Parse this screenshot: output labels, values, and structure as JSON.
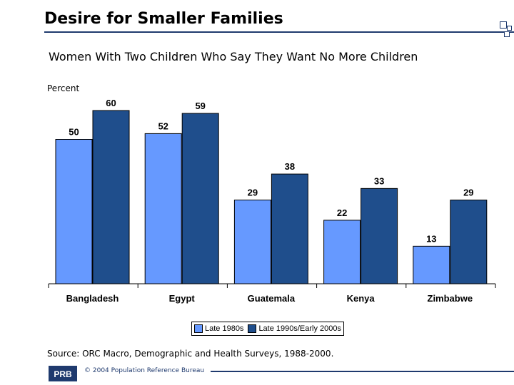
{
  "slide": {
    "title": "Desire for Smaller Families",
    "source": "Source: ORC Macro, Demographic and Health Surveys, 1988-2000.",
    "copyright": "© 2004 Population Reference Bureau"
  },
  "colors": {
    "series_1": "#6699ff",
    "series_2": "#1f4e8c",
    "accent": "#1f3a6e"
  },
  "chart_data": {
    "type": "bar",
    "title": "Women With Two Children Who Say They Want No More Children",
    "ylabel": "Percent",
    "xlabel": "",
    "categories": [
      "Bangladesh",
      "Egypt",
      "Guatemala",
      "Kenya",
      "Zimbabwe"
    ],
    "series": [
      {
        "name": "Late 1980s",
        "values": [
          50,
          52,
          29,
          22,
          13
        ]
      },
      {
        "name": "Late 1990s/Early 2000s",
        "values": [
          60,
          59,
          38,
          33,
          29
        ]
      }
    ],
    "ylim": [
      0,
      65
    ],
    "grid": false,
    "data_labels": true,
    "legend_position": "bottom"
  }
}
